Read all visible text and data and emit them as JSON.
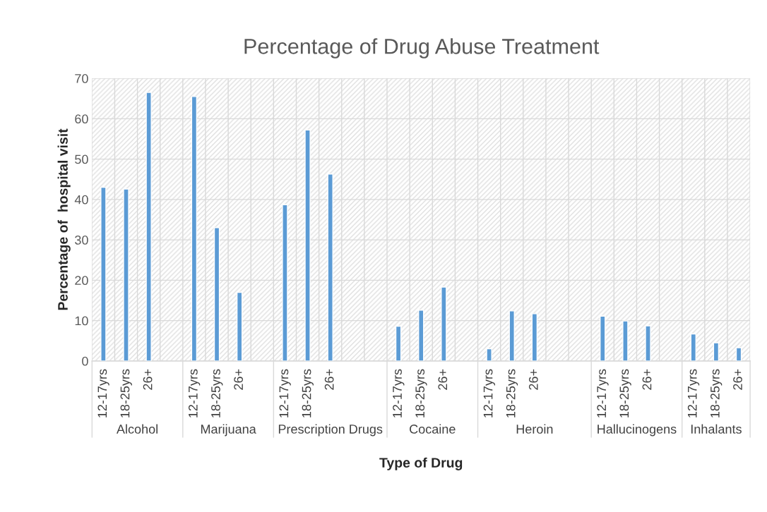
{
  "chart_data": {
    "type": "bar",
    "title": "Percentage of Drug Abuse Treatment",
    "xlabel": "Type of Drug",
    "ylabel": "Percentage of  hospital visit",
    "categories": [
      "12-17yrs",
      "18-25yrs",
      "26+",
      null,
      "12-17yrs",
      "18-25yrs",
      "26+",
      null,
      "12-17yrs",
      "18-25yrs",
      "26+",
      null,
      null,
      "12-17yrs",
      "18-25yrs",
      "26+",
      null,
      "12-17yrs",
      "18-25yrs",
      "26+",
      null,
      null,
      "12-17yrs",
      "18-25yrs",
      "26+",
      null,
      "12-17yrs",
      "18-25yrs",
      "26+"
    ],
    "values": [
      43,
      42.6,
      66.5,
      null,
      65.5,
      33,
      17,
      null,
      38.7,
      57.2,
      46.3,
      null,
      null,
      8.6,
      12.6,
      18.3,
      null,
      3,
      12.4,
      11.7,
      null,
      null,
      11.1,
      9.9,
      8.7,
      null,
      6.7,
      4.5,
      3.3
    ],
    "color": "#5b9bd5",
    "annotations": [
      "Alcohol",
      "Marijuana",
      "Prescription Drugs",
      "Cocaine",
      "Heroin",
      "Hallucinogens",
      "Inhalants"
    ],
    "ylim": [
      0,
      70
    ],
    "yticks": [
      0,
      10,
      20,
      30,
      40,
      50,
      60,
      70
    ],
    "grid": true,
    "legend": false
  }
}
